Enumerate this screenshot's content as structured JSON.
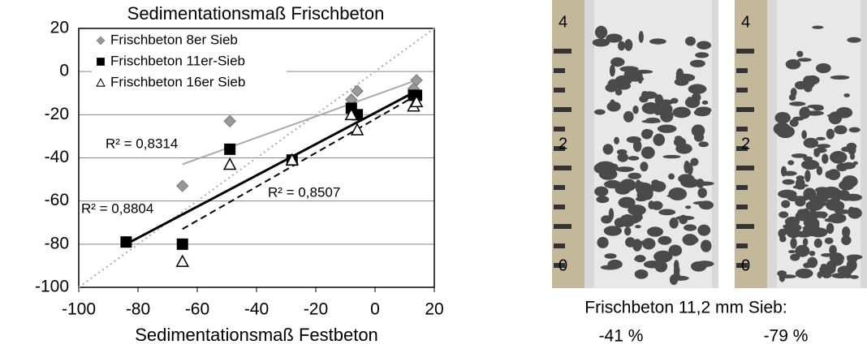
{
  "chart_data": {
    "type": "scatter",
    "title": "Sedimentationsmaß Frischbeton",
    "x_label": "Sedimentationsmaß Festbeton",
    "xlim": [
      -100,
      20
    ],
    "xticks": [
      -100,
      -80,
      -60,
      -40,
      -20,
      0,
      20
    ],
    "ylim": [
      -100,
      20
    ],
    "yticks": [
      -100,
      -80,
      -60,
      -40,
      -20,
      0,
      20
    ],
    "grid": true,
    "legend": "upper left",
    "series": [
      {
        "name": "Frischbeton 8er Sieb",
        "color": "#999999",
        "marker": "diamond",
        "x": [
          -65,
          -49,
          -8,
          -6,
          13,
          14
        ],
        "values": [
          -53,
          -23,
          -13,
          -9,
          -8,
          -4
        ]
      },
      {
        "name": "Frischbeton 11er-Sieb",
        "color": "#000000",
        "marker": "square",
        "x": [
          -84,
          -65,
          -49,
          -28,
          -8,
          -6,
          13,
          14
        ],
        "values": [
          -79,
          -80,
          -36,
          -41,
          -17,
          -20,
          -11,
          -11
        ]
      },
      {
        "name": "Frischbeton 16er Sieb",
        "color": "#000000",
        "marker": "triangle",
        "x": [
          -65,
          -49,
          -28,
          -8,
          -6,
          13,
          14
        ],
        "values": [
          -88,
          -43,
          -41,
          -20,
          -27,
          -16,
          -14
        ]
      }
    ],
    "trendlines": [
      {
        "label": "R² = 0,8314",
        "color": "#aaaaaa",
        "dash": "solid",
        "x": [
          -65,
          14
        ],
        "values": [
          -43,
          -4
        ]
      },
      {
        "label": "R² = 0,8804",
        "color": "#000000",
        "dash": "solid",
        "x": [
          -84,
          14
        ],
        "values": [
          -80,
          -9
        ]
      },
      {
        "label": "R² = 0,8507",
        "color": "#000000",
        "dash": "dashed",
        "x": [
          -65,
          14
        ],
        "values": [
          -73,
          -11
        ]
      }
    ],
    "reference_line": {
      "color": "#aaaaaa",
      "x": [
        -100,
        20
      ],
      "values": [
        -100,
        20
      ]
    }
  },
  "photos": {
    "scale_labels": [
      "4",
      "2",
      "0"
    ],
    "caption": "Frischbeton 11,2 mm Sieb:",
    "labels": [
      "-41 %",
      "-79 %"
    ]
  }
}
